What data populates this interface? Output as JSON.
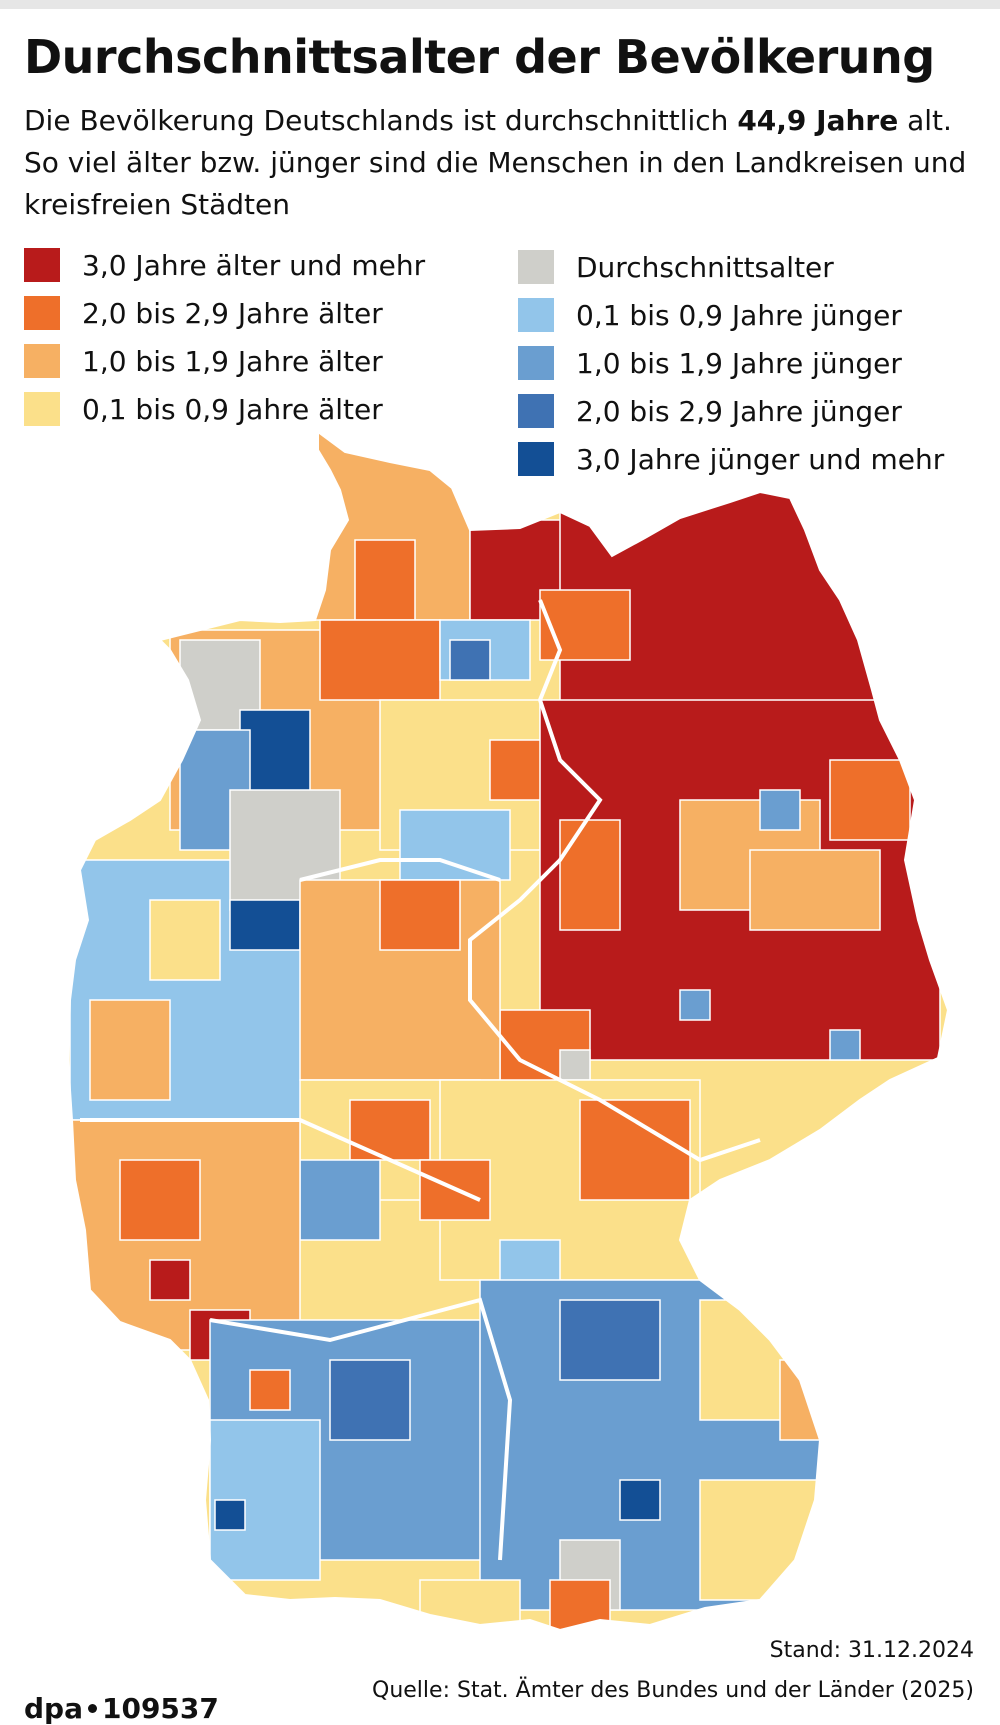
{
  "title": "Durchschnittsalter der Bevölkerung",
  "subtitle": {
    "part1": "Die Bevölkerung Deutschlands ist durchschnittlich ",
    "bold": "44,9 Jahre",
    "part2": " alt. So viel älter bzw. jünger sind die Menschen in den Landkreisen und kreisfreien Städten"
  },
  "legend": [
    {
      "label": "3,0 Jahre älter und mehr",
      "color": "#b81b1b"
    },
    {
      "label": "2,0 bis 2,9 Jahre älter",
      "color": "#ee6f2a"
    },
    {
      "label": "1,0 bis 1,9 Jahre älter",
      "color": "#f6b063"
    },
    {
      "label": "0,1 bis 0,9 Jahre älter",
      "color": "#fbe08a"
    },
    {
      "label": "Durchschnittsalter",
      "color": "#cfcfca"
    },
    {
      "label": "0,1 bis 0,9 Jahre jünger",
      "color": "#92c5ea"
    },
    {
      "label": "1,0 bis 1,9 Jahre jünger",
      "color": "#6a9ed0"
    },
    {
      "label": "2,0 bis 2,9 Jahre jünger",
      "color": "#3f72b3"
    },
    {
      "label": "3,0 Jahre jünger und mehr",
      "color": "#134f95"
    }
  ],
  "footer": {
    "stand": "Stand: 31.12.2024",
    "source": "Quelle: Stat. Ämter des Bundes und der Länder (2025)",
    "brand_prefix": "dpa",
    "brand_number": "109537"
  }
}
